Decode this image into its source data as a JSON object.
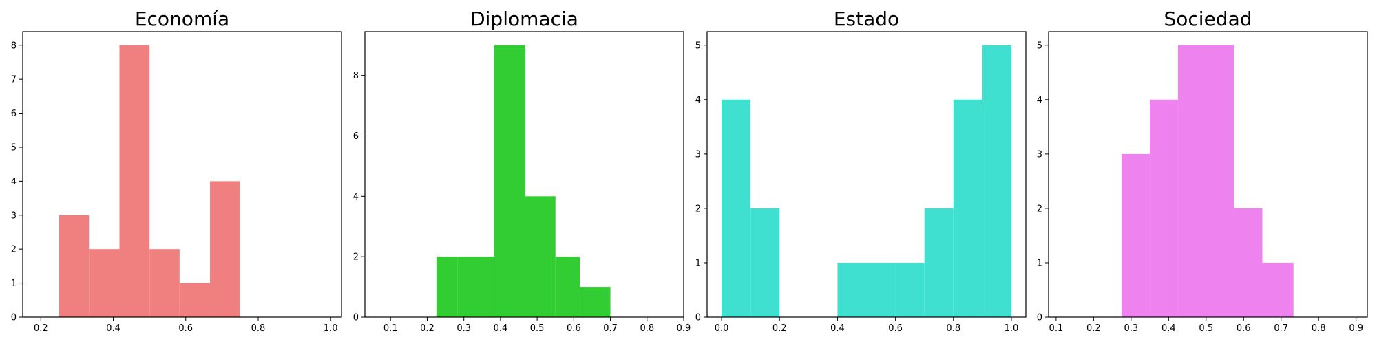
{
  "chart_data": [
    {
      "type": "bar",
      "title": "Economía",
      "color": "#f08080",
      "xlim": [
        0.15,
        1.03
      ],
      "ylim": [
        0,
        8.4
      ],
      "xticks": [
        0.2,
        0.4,
        0.6,
        0.8,
        1.0
      ],
      "xtick_labels": [
        "0.2",
        "0.4",
        "0.6",
        "0.8",
        "1.0"
      ],
      "yticks": [
        0,
        1,
        2,
        3,
        4,
        5,
        6,
        7,
        8
      ],
      "ytick_labels": [
        "0",
        "1",
        "2",
        "3",
        "4",
        "5",
        "6",
        "7",
        "8"
      ],
      "bin_edges": [
        0.25,
        0.333,
        0.417,
        0.5,
        0.583,
        0.667,
        0.75
      ],
      "values": [
        3,
        2,
        8,
        2,
        1,
        4
      ]
    },
    {
      "type": "bar",
      "title": "Diplomacia",
      "color": "#32cd32",
      "xlim": [
        0.03,
        0.9
      ],
      "ylim": [
        0,
        9.45
      ],
      "xticks": [
        0.1,
        0.2,
        0.3,
        0.4,
        0.5,
        0.6,
        0.7,
        0.8,
        0.9
      ],
      "xtick_labels": [
        "0.1",
        "0.2",
        "0.3",
        "0.4",
        "0.5",
        "0.6",
        "0.7",
        "0.8",
        "0.9"
      ],
      "yticks": [
        0,
        2,
        4,
        6,
        8
      ],
      "ytick_labels": [
        "0",
        "2",
        "4",
        "6",
        "8"
      ],
      "bin_edges": [
        0.225,
        0.283,
        0.383,
        0.467,
        0.55,
        0.617,
        0.7
      ],
      "values": [
        2,
        2,
        9,
        4,
        2,
        1
      ]
    },
    {
      "type": "bar",
      "title": "Estado",
      "color": "#40e0d0",
      "xlim": [
        -0.05,
        1.05
      ],
      "ylim": [
        0,
        5.25
      ],
      "xticks": [
        0.0,
        0.2,
        0.4,
        0.6,
        0.8,
        1.0
      ],
      "xtick_labels": [
        "0.0",
        "0.2",
        "0.4",
        "0.6",
        "0.8",
        "1.0"
      ],
      "yticks": [
        0,
        1,
        2,
        3,
        4,
        5
      ],
      "ytick_labels": [
        "0",
        "1",
        "2",
        "3",
        "4",
        "5"
      ],
      "bin_edges": [
        0.0,
        0.1,
        0.2,
        0.3,
        0.4,
        0.5,
        0.6,
        0.7,
        0.8,
        0.9,
        1.0
      ],
      "values": [
        4,
        2,
        0,
        0,
        1,
        1,
        1,
        2,
        4,
        5
      ]
    },
    {
      "type": "bar",
      "title": "Sociedad",
      "color": "#ee82ee",
      "xlim": [
        0.08,
        0.93
      ],
      "ylim": [
        0,
        5.25
      ],
      "xticks": [
        0.1,
        0.2,
        0.3,
        0.4,
        0.5,
        0.6,
        0.7,
        0.8,
        0.9
      ],
      "xtick_labels": [
        "0.1",
        "0.2",
        "0.3",
        "0.4",
        "0.5",
        "0.6",
        "0.7",
        "0.8",
        "0.9"
      ],
      "yticks": [
        0,
        1,
        2,
        3,
        4,
        5
      ],
      "ytick_labels": [
        "0",
        "1",
        "2",
        "3",
        "4",
        "5"
      ],
      "bin_edges": [
        0.275,
        0.35,
        0.425,
        0.5,
        0.575,
        0.65,
        0.733
      ],
      "values": [
        3,
        4,
        5,
        5,
        2,
        1
      ]
    }
  ]
}
